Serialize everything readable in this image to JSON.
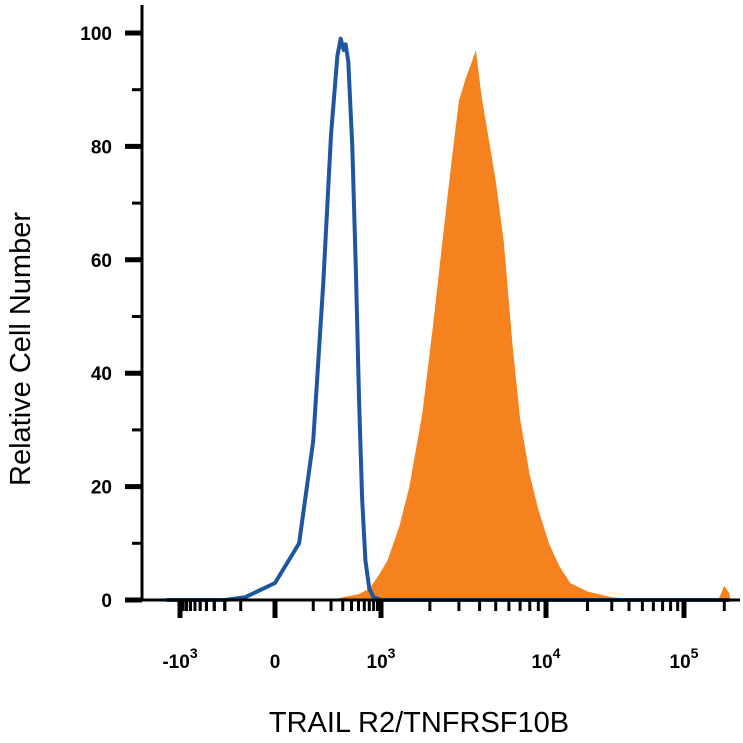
{
  "chart_data": {
    "type": "area",
    "title": "",
    "xlabel": "TRAIL R2/TNFRSF10B",
    "ylabel": "Relative Cell Number",
    "xscale": "biexponential",
    "ylim": [
      0,
      100
    ],
    "yticks": [
      "0",
      "20",
      "40",
      "60",
      "80",
      "100"
    ],
    "xticks": [
      {
        "base": "-10",
        "exp": "3",
        "value": -1000
      },
      {
        "base": "0",
        "exp": "",
        "value": 0
      },
      {
        "base": "10",
        "exp": "3",
        "value": 1000
      },
      {
        "base": "10",
        "exp": "4",
        "value": 10000
      },
      {
        "base": "10",
        "exp": "5",
        "value": 100000
      }
    ],
    "grid": false,
    "legend": "none",
    "series": [
      {
        "style": "filled",
        "color": "#f5821f",
        "points": [
          [
            -1580,
            0
          ],
          [
            200,
            0
          ],
          [
            300,
            0.5
          ],
          [
            500,
            1
          ],
          [
            700,
            2
          ],
          [
            900,
            4
          ],
          [
            1100,
            7
          ],
          [
            1300,
            13
          ],
          [
            1500,
            20
          ],
          [
            1800,
            33
          ],
          [
            2100,
            49
          ],
          [
            2400,
            64
          ],
          [
            2700,
            77
          ],
          [
            3000,
            88
          ],
          [
            3300,
            92
          ],
          [
            3600,
            95
          ],
          [
            3800,
            97
          ],
          [
            4100,
            89
          ],
          [
            4500,
            82
          ],
          [
            5000,
            74
          ],
          [
            5600,
            63
          ],
          [
            6300,
            45
          ],
          [
            7000,
            32
          ],
          [
            8000,
            22
          ],
          [
            9000,
            16
          ],
          [
            10500,
            10
          ],
          [
            12500,
            6
          ],
          [
            15000,
            3
          ],
          [
            20000,
            1.5
          ],
          [
            30000,
            0.5
          ],
          [
            50000,
            0
          ],
          [
            180000,
            0
          ],
          [
            200000,
            2.5
          ],
          [
            220000,
            1
          ]
        ]
      },
      {
        "style": "line",
        "color": "#1e56a0",
        "points": [
          [
            -1580,
            0
          ],
          [
            -200,
            0
          ],
          [
            -80,
            0.5
          ],
          [
            0,
            3
          ],
          [
            50,
            10
          ],
          [
            100,
            28
          ],
          [
            150,
            56
          ],
          [
            200,
            82
          ],
          [
            250,
            96
          ],
          [
            280,
            99
          ],
          [
            310,
            97
          ],
          [
            330,
            98
          ],
          [
            360,
            95
          ],
          [
            410,
            80
          ],
          [
            460,
            58
          ],
          [
            510,
            35
          ],
          [
            560,
            18
          ],
          [
            620,
            7
          ],
          [
            700,
            2
          ],
          [
            800,
            0.5
          ],
          [
            1000,
            0
          ],
          [
            220000,
            0
          ]
        ]
      }
    ],
    "colors": {
      "axis": "#000000",
      "background": "#ffffff"
    }
  }
}
